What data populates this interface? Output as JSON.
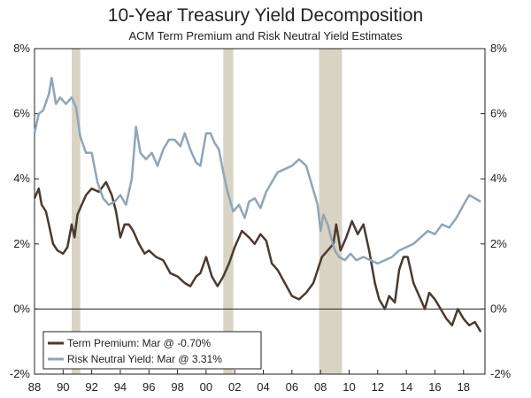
{
  "chart_data": {
    "type": "line",
    "title": "10-Year Treasury Yield Decomposition",
    "subtitle": "ACM Term Premium and Risk Neutral Yield Estimates",
    "xlim": [
      1988,
      2019.5
    ],
    "ylim": [
      -2,
      8
    ],
    "x_ticks": [
      1988,
      1990,
      1992,
      1994,
      1996,
      1998,
      2000,
      2002,
      2004,
      2006,
      2008,
      2010,
      2012,
      2014,
      2016,
      2018
    ],
    "x_tick_labels": [
      "88",
      "90",
      "92",
      "94",
      "96",
      "98",
      "00",
      "02",
      "04",
      "06",
      "08",
      "10",
      "12",
      "14",
      "16",
      "18"
    ],
    "y_ticks": [
      -2,
      0,
      2,
      4,
      6,
      8
    ],
    "y_tick_labels": [
      "-2%",
      "0%",
      "2%",
      "4%",
      "6%",
      "8%"
    ],
    "recessions": [
      [
        1990.6,
        1991.2
      ],
      [
        2001.2,
        2001.9
      ],
      [
        2007.9,
        2009.5
      ]
    ],
    "series": [
      {
        "name": "Term Premium",
        "legend": "Term Premium: Mar @ -0.70%",
        "color": "#4a3a30",
        "x": [
          1988.0,
          1988.3,
          1988.5,
          1988.8,
          1989.0,
          1989.3,
          1989.6,
          1990.0,
          1990.3,
          1990.6,
          1990.8,
          1991.0,
          1991.3,
          1991.6,
          1992.0,
          1992.5,
          1993.0,
          1993.4,
          1993.7,
          1994.0,
          1994.3,
          1994.6,
          1994.9,
          1995.3,
          1995.7,
          1996.0,
          1996.5,
          1997.0,
          1997.5,
          1998.0,
          1998.5,
          1998.9,
          1999.3,
          1999.6,
          2000.0,
          2000.4,
          2000.8,
          2001.2,
          2001.6,
          2002.0,
          2002.5,
          2003.0,
          2003.4,
          2003.8,
          2004.2,
          2004.6,
          2005.0,
          2005.5,
          2006.0,
          2006.5,
          2007.0,
          2007.5,
          2007.8,
          2008.1,
          2008.5,
          2008.9,
          2009.1,
          2009.4,
          2009.8,
          2010.2,
          2010.6,
          2011.0,
          2011.4,
          2011.8,
          2012.1,
          2012.5,
          2012.8,
          2013.2,
          2013.5,
          2013.8,
          2014.1,
          2014.5,
          2014.9,
          2015.3,
          2015.6,
          2016.0,
          2016.4,
          2016.8,
          2017.2,
          2017.6,
          2018.0,
          2018.4,
          2018.8,
          2019.2
        ],
        "y": [
          3.4,
          3.7,
          3.2,
          3.0,
          2.6,
          2.0,
          1.8,
          1.7,
          1.9,
          2.6,
          2.2,
          2.9,
          3.2,
          3.5,
          3.7,
          3.6,
          3.9,
          3.5,
          3.0,
          2.2,
          2.6,
          2.6,
          2.4,
          2.0,
          1.7,
          1.8,
          1.6,
          1.5,
          1.1,
          1.0,
          0.8,
          0.7,
          1.0,
          1.1,
          1.6,
          1.0,
          0.7,
          1.0,
          1.4,
          1.9,
          2.4,
          2.2,
          2.0,
          2.3,
          2.1,
          1.4,
          1.2,
          0.8,
          0.4,
          0.3,
          0.5,
          0.8,
          1.2,
          1.6,
          1.8,
          2.0,
          2.6,
          1.8,
          2.2,
          2.7,
          2.3,
          2.6,
          1.8,
          0.8,
          0.3,
          0.0,
          0.4,
          0.2,
          1.2,
          1.6,
          1.6,
          0.8,
          0.4,
          0.0,
          0.5,
          0.3,
          0.0,
          -0.3,
          -0.5,
          0.0,
          -0.3,
          -0.5,
          -0.4,
          -0.7
        ]
      },
      {
        "name": "Risk Neutral Yield",
        "legend": "Risk Neutral Yield: Mar @ 3.31%",
        "color": "#8fa5b8",
        "x": [
          1988.0,
          1988.3,
          1988.6,
          1989.0,
          1989.2,
          1989.5,
          1989.8,
          1990.2,
          1990.6,
          1990.9,
          1991.2,
          1991.6,
          1992.0,
          1992.4,
          1992.8,
          1993.2,
          1993.6,
          1994.0,
          1994.4,
          1994.8,
          1995.1,
          1995.4,
          1995.8,
          1996.2,
          1996.6,
          1997.0,
          1997.4,
          1997.8,
          1998.2,
          1998.5,
          1998.9,
          1999.3,
          1999.6,
          2000.0,
          2000.3,
          2000.6,
          2000.9,
          2001.2,
          2001.5,
          2001.9,
          2002.3,
          2002.7,
          2003.0,
          2003.4,
          2003.8,
          2004.2,
          2004.6,
          2005.0,
          2005.5,
          2006.0,
          2006.5,
          2007.0,
          2007.4,
          2007.8,
          2008.0,
          2008.2,
          2008.5,
          2008.8,
          2009.0,
          2009.3,
          2009.7,
          2010.1,
          2010.5,
          2011.0,
          2011.5,
          2012.0,
          2012.5,
          2013.0,
          2013.5,
          2014.0,
          2014.5,
          2015.0,
          2015.5,
          2016.0,
          2016.5,
          2017.0,
          2017.5,
          2018.0,
          2018.4,
          2018.8,
          2019.2
        ],
        "y": [
          5.4,
          6.0,
          6.1,
          6.6,
          7.1,
          6.3,
          6.5,
          6.3,
          6.5,
          6.2,
          5.3,
          4.8,
          4.8,
          3.9,
          3.4,
          3.2,
          3.3,
          3.5,
          3.2,
          4.0,
          5.6,
          4.8,
          4.6,
          4.8,
          4.4,
          4.9,
          5.2,
          5.2,
          5.0,
          5.4,
          4.9,
          4.5,
          4.4,
          5.4,
          5.4,
          5.1,
          4.9,
          4.2,
          3.6,
          3.0,
          3.2,
          2.8,
          3.3,
          3.4,
          3.1,
          3.6,
          3.9,
          4.2,
          4.3,
          4.4,
          4.6,
          4.4,
          3.8,
          3.2,
          2.4,
          2.9,
          2.6,
          2.1,
          1.8,
          1.6,
          1.5,
          1.7,
          1.5,
          1.6,
          1.5,
          1.4,
          1.5,
          1.6,
          1.8,
          1.9,
          2.0,
          2.2,
          2.4,
          2.3,
          2.6,
          2.5,
          2.8,
          3.2,
          3.5,
          3.4,
          3.3
        ]
      }
    ]
  }
}
